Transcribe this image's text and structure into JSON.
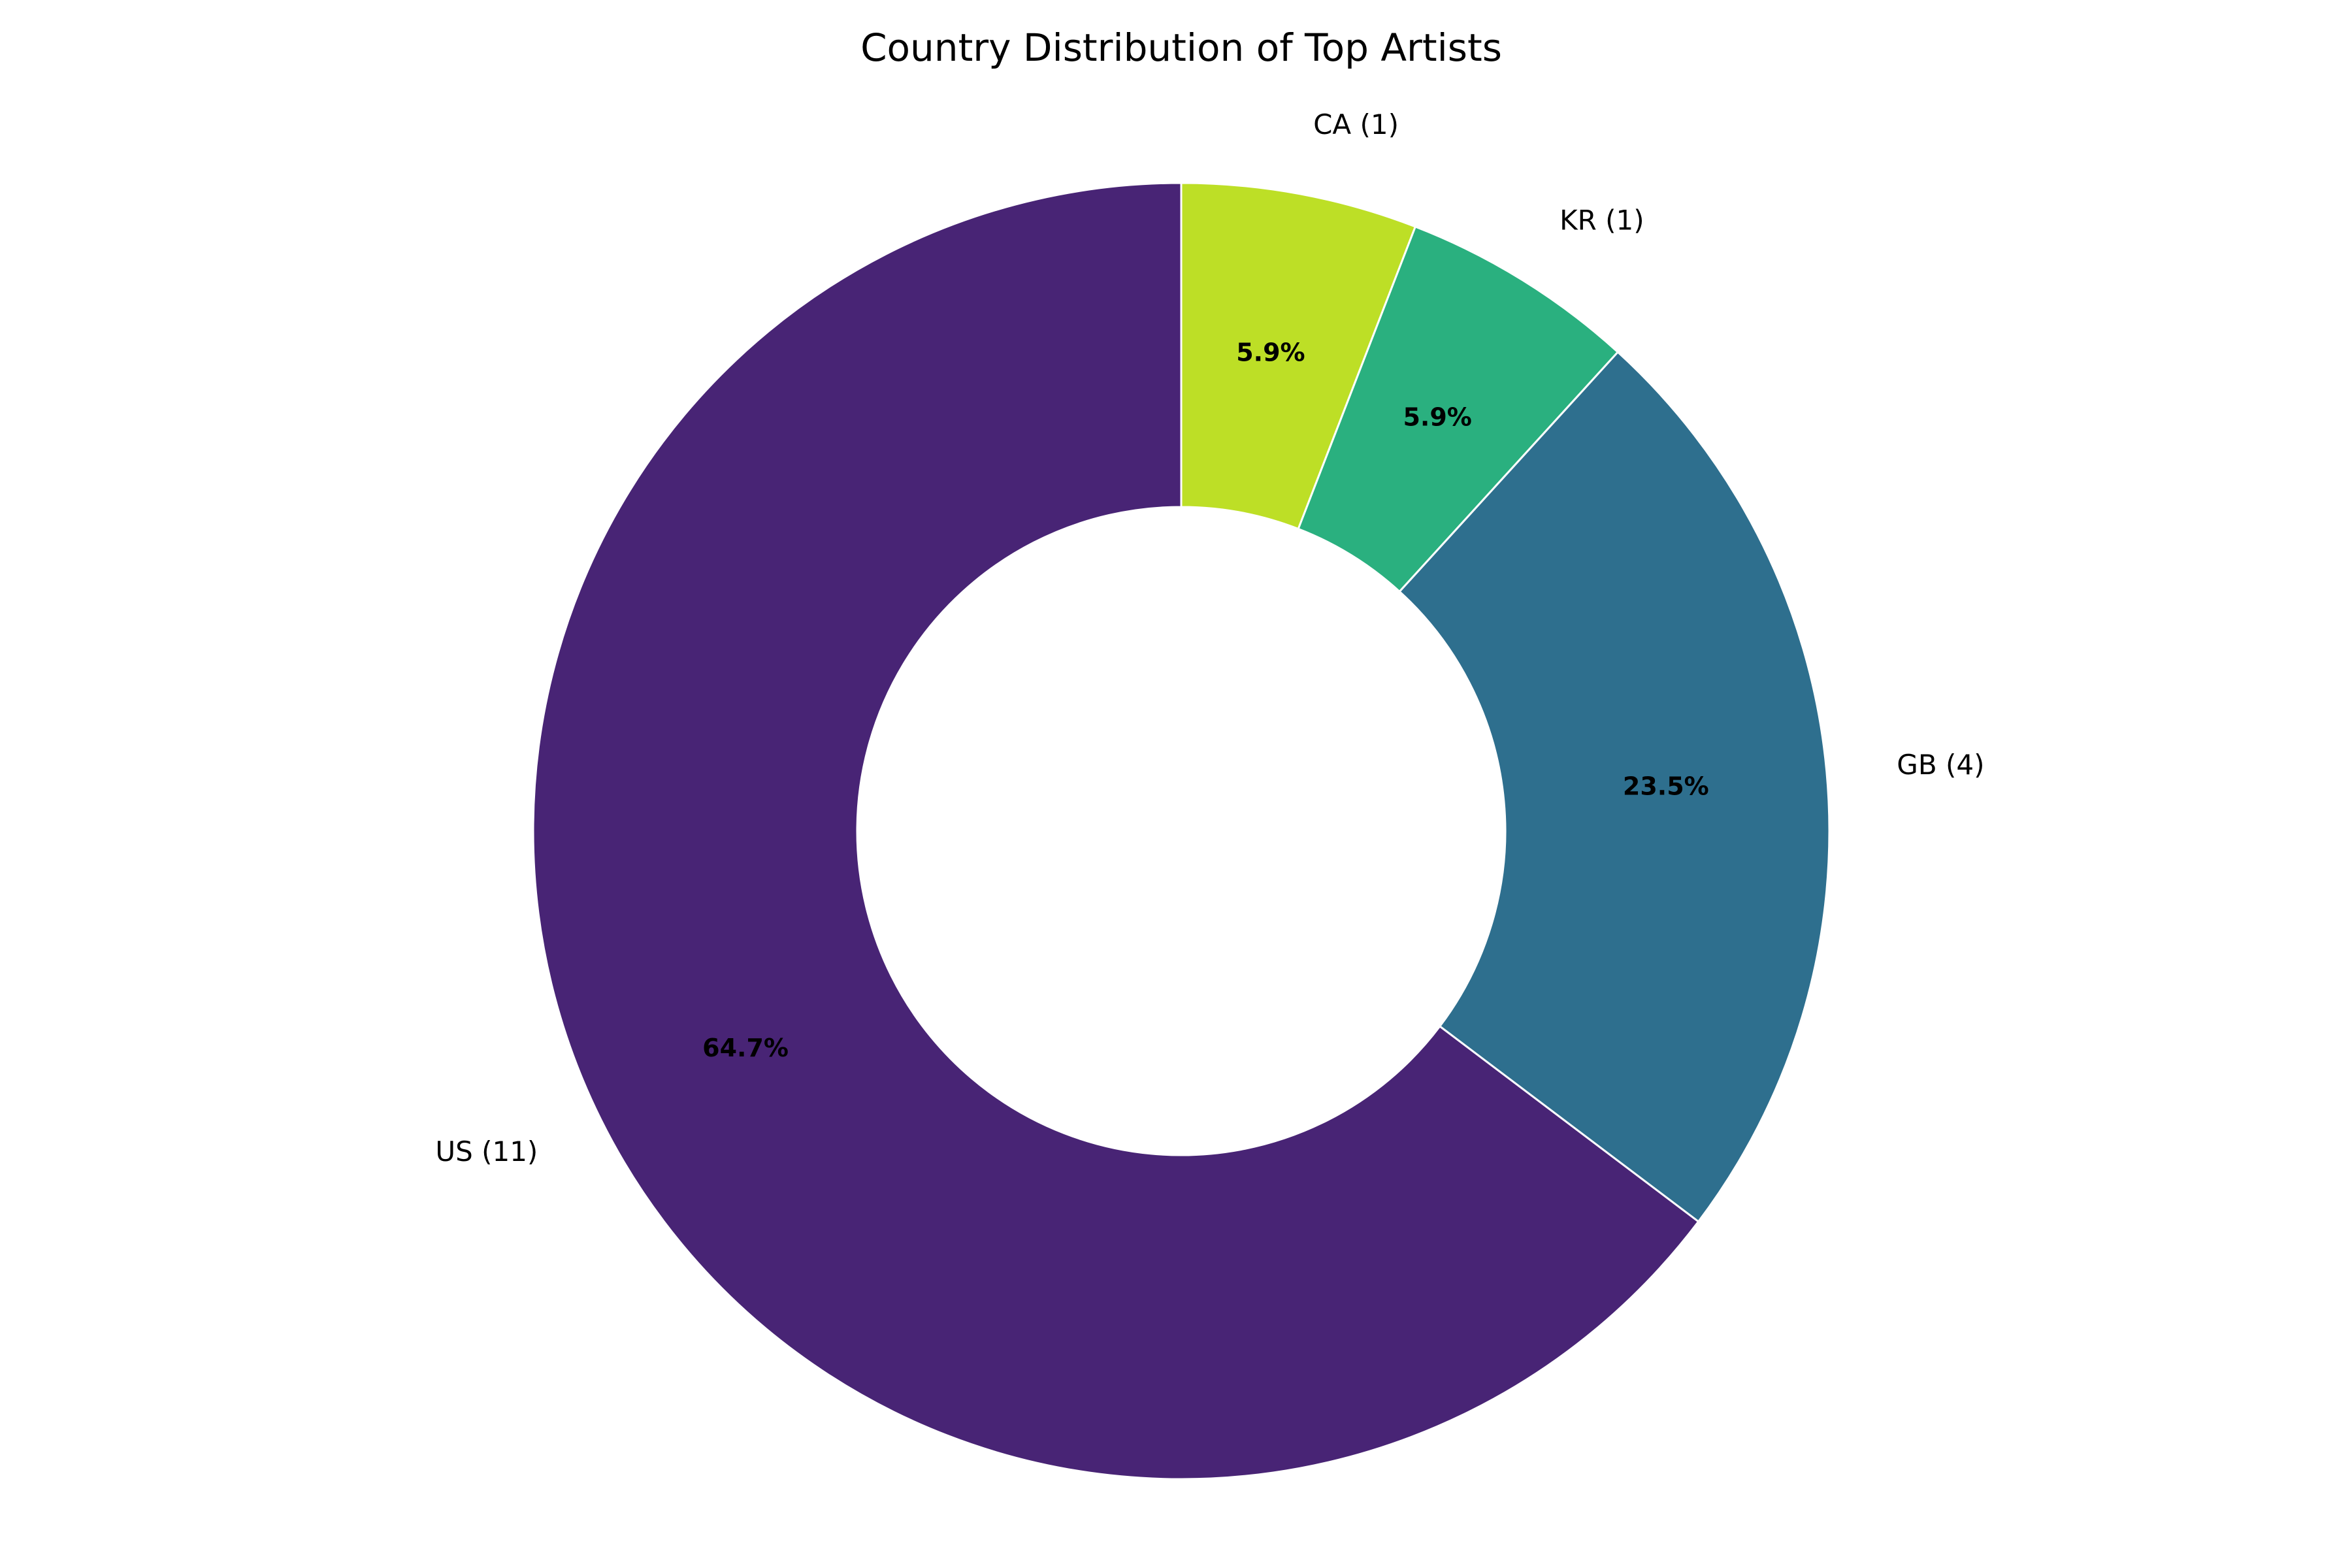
{
  "chart_data": {
    "type": "pie",
    "title": "Country Distribution of Top Artists",
    "donut": true,
    "start_angle": "top",
    "direction": "clockwise",
    "legend": "none",
    "slices": [
      {
        "category": "CA",
        "value": 1,
        "label": "CA (1)",
        "percent_label": "5.9%",
        "color": "#bddf26"
      },
      {
        "category": "KR",
        "value": 1,
        "label": "KR (1)",
        "percent_label": "5.9%",
        "color": "#2ab07f"
      },
      {
        "category": "GB",
        "value": 4,
        "label": "GB (4)",
        "percent_label": "23.5%",
        "color": "#2e6f8e"
      },
      {
        "category": "US",
        "value": 11,
        "label": "US (11)",
        "percent_label": "64.7%",
        "color": "#482475"
      }
    ]
  }
}
